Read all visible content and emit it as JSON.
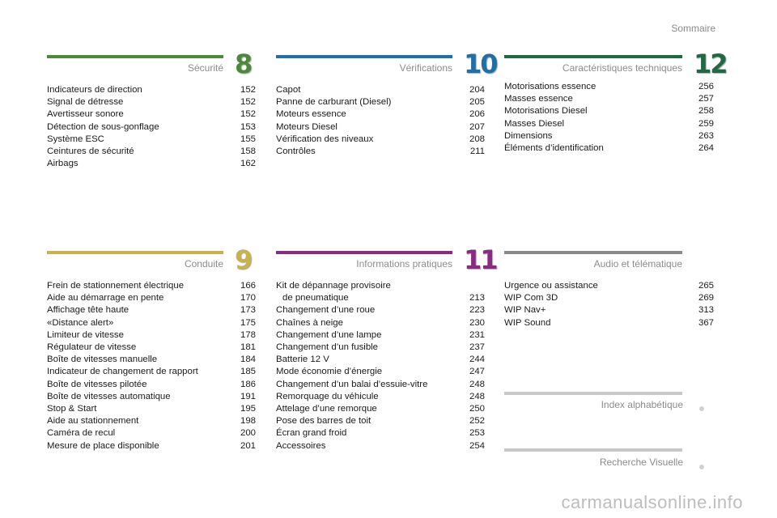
{
  "header": {
    "sommaire": "Sommaire"
  },
  "sections": {
    "securite": {
      "title": "Sécurité",
      "number": "8",
      "color": "#4a8a3a",
      "items": [
        {
          "label": "Indicateurs de direction",
          "page": "152"
        },
        {
          "label": "Signal de détresse",
          "page": "152"
        },
        {
          "label": "Avertisseur sonore",
          "page": "152"
        },
        {
          "label": "Détection de sous-gonflage",
          "page": "153"
        },
        {
          "label": "Système ESC",
          "page": "155"
        },
        {
          "label": "Ceintures de sécurité",
          "page": "158"
        },
        {
          "label": "Airbags",
          "page": "162"
        }
      ]
    },
    "verifications": {
      "title": "Vérifications",
      "number": "10",
      "color": "#1f6fa8",
      "items": [
        {
          "label": "Capot",
          "page": "204"
        },
        {
          "label": "Panne de carburant (Diesel)",
          "page": "205"
        },
        {
          "label": "Moteurs essence",
          "page": "206"
        },
        {
          "label": "Moteurs Diesel",
          "page": "207"
        },
        {
          "label": "Vérification des niveaux",
          "page": "208"
        },
        {
          "label": "Contrôles",
          "page": "211"
        }
      ]
    },
    "caracteristiques": {
      "title": "Caractéristiques techniques",
      "number": "12",
      "color": "#1f6a45",
      "items": [
        {
          "label": "Motorisations essence",
          "page": "256"
        },
        {
          "label": "Masses essence",
          "page": "257"
        },
        {
          "label": "Motorisations Diesel",
          "page": "258"
        },
        {
          "label": "Masses Diesel",
          "page": "259"
        },
        {
          "label": "Dimensions",
          "page": "263"
        },
        {
          "label": "Éléments d’identification",
          "page": "264"
        }
      ]
    },
    "conduite": {
      "title": "Conduite",
      "number": "9",
      "color": "#c9b24a",
      "items": [
        {
          "label": "Frein de stationnement électrique",
          "page": "166"
        },
        {
          "label": "Aide au démarrage en pente",
          "page": "170"
        },
        {
          "label": "Affichage tête haute",
          "page": "173"
        },
        {
          "label": "«Distance alert»",
          "page": "175"
        },
        {
          "label": "Limiteur de vitesse",
          "page": "178"
        },
        {
          "label": "Régulateur de vitesse",
          "page": "181"
        },
        {
          "label": "Boîte de vitesses manuelle",
          "page": "184"
        },
        {
          "label": "Indicateur de changement de rapport",
          "page": "185"
        },
        {
          "label": "Boîte de vitesses pilotée",
          "page": "186"
        },
        {
          "label": "Boîte de vitesses automatique",
          "page": "191"
        },
        {
          "label": "Stop & Start",
          "page": "195"
        },
        {
          "label": "Aide au stationnement",
          "page": "198"
        },
        {
          "label": "Caméra de recul",
          "page": "200"
        },
        {
          "label": "Mesure de place disponible",
          "page": "201"
        }
      ]
    },
    "informations": {
      "title": "Informations pratiques",
      "number": "11",
      "color": "#8a2a82",
      "items": [
        {
          "label": "Kit de dépannage provisoire",
          "label2": "de pneumatique",
          "page": "213"
        },
        {
          "label": "Changement d’une roue",
          "page": "223"
        },
        {
          "label": "Chaînes à neige",
          "page": "230"
        },
        {
          "label": "Changement d’une lampe",
          "page": "231"
        },
        {
          "label": "Changement d’un fusible",
          "page": "237"
        },
        {
          "label": "Batterie 12 V",
          "page": "244"
        },
        {
          "label": "Mode économie d’énergie",
          "page": "247"
        },
        {
          "label": "Changement d’un balai d’essuie-vitre",
          "page": "248"
        },
        {
          "label": "Remorquage du véhicule",
          "page": "248"
        },
        {
          "label": "Attelage d’une remorque",
          "page": "250"
        },
        {
          "label": "Pose des barres de toit",
          "page": "252"
        },
        {
          "label": "Écran grand froid",
          "page": "253"
        },
        {
          "label": "Accessoires",
          "page": "254"
        }
      ]
    },
    "audio": {
      "title": "Audio et télématique",
      "color": "#8a8a8a",
      "items": [
        {
          "label": "Urgence ou assistance",
          "page": "265"
        },
        {
          "label": "WIP Com 3D",
          "page": "269"
        },
        {
          "label": "WIP Nav+",
          "page": "313"
        },
        {
          "label": "WIP Sound",
          "page": "367"
        }
      ]
    }
  },
  "links": {
    "index": "Index alphabétique",
    "recherche": "Recherche Visuelle"
  },
  "watermark": "carmanualsonline.info"
}
